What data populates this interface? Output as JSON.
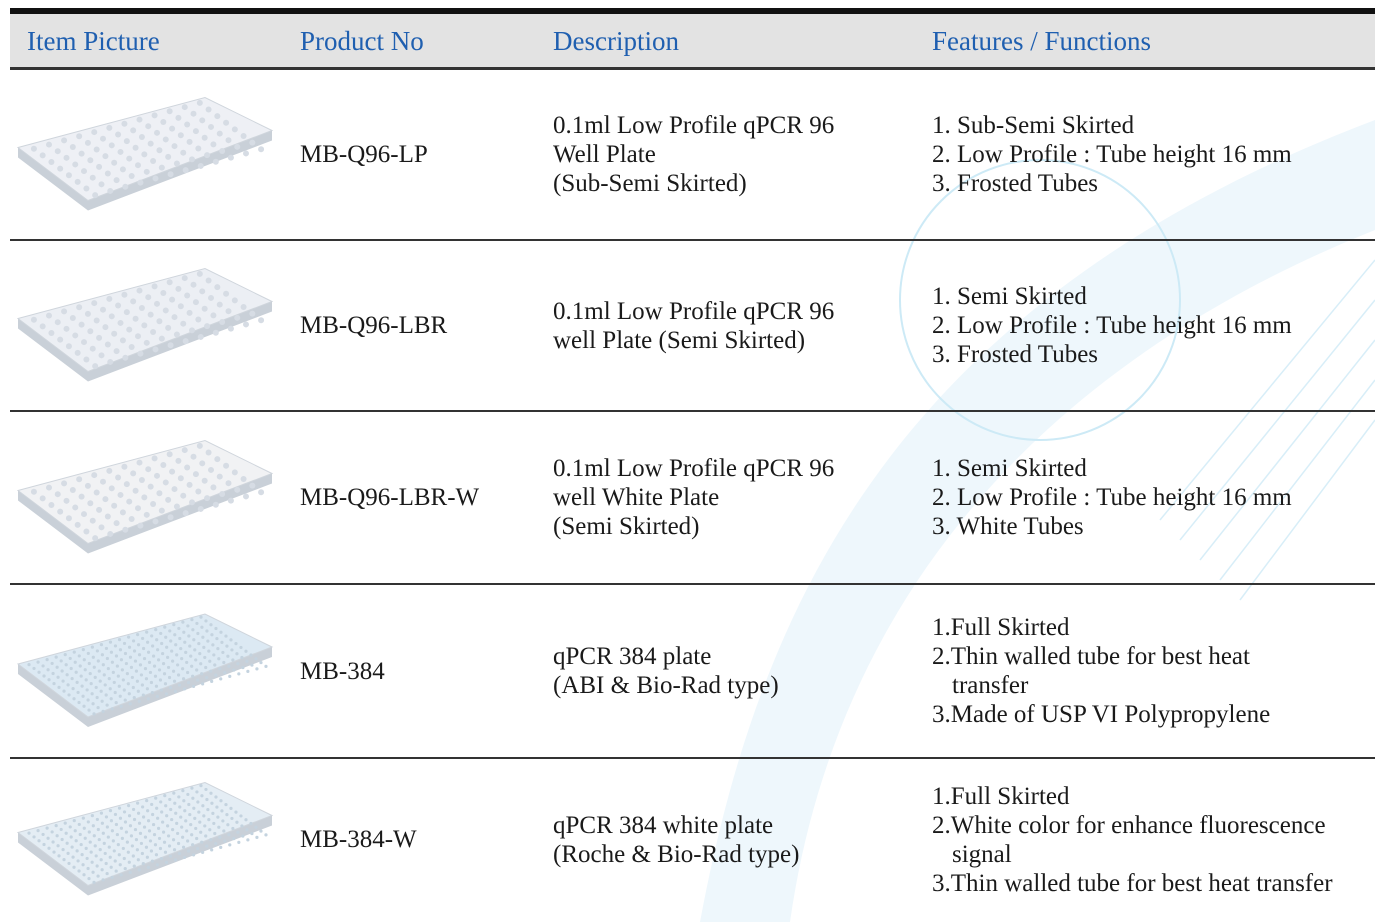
{
  "header": {
    "columns": [
      "Item Picture",
      "Product No",
      "Description",
      "Features / Functions"
    ]
  },
  "rows": [
    {
      "product_no": "MB-Q96-LP",
      "description": [
        "0.1ml Low Profile qPCR 96",
        "Well Plate",
        "(Sub-Semi Skirted)"
      ],
      "features": [
        "1. Sub-Semi Skirted",
        "2. Low Profile : Tube height 16 mm",
        "3. Frosted Tubes"
      ]
    },
    {
      "product_no": "MB-Q96-LBR",
      "description": [
        "0.1ml Low Profile qPCR 96",
        "well Plate (Semi Skirted)"
      ],
      "features": [
        "1. Semi Skirted",
        "2. Low Profile : Tube height 16 mm",
        "3. Frosted Tubes"
      ]
    },
    {
      "product_no": "MB-Q96-LBR-W",
      "description": [
        "0.1ml Low Profile qPCR 96",
        "well White Plate",
        "(Semi Skirted)"
      ],
      "features": [
        "1. Semi Skirted",
        "2. Low Profile : Tube height 16 mm",
        "3. White Tubes"
      ]
    },
    {
      "product_no": "MB-384",
      "description": [
        "qPCR 384 plate",
        "(ABI & Bio-Rad type)"
      ],
      "features": [
        "1.Full Skirted",
        "2.Thin walled tube for best heat",
        "transfer",
        "3.Made of USP VI Polypropylene"
      ]
    },
    {
      "product_no": "MB-384-W",
      "description": [
        "qPCR 384 white plate",
        "(Roche & Bio-Rad type)"
      ],
      "features": [
        "1.Full Skirted",
        "2.White color for enhance fluorescence",
        "signal",
        "3.Thin walled tube for best heat transfer"
      ]
    }
  ]
}
